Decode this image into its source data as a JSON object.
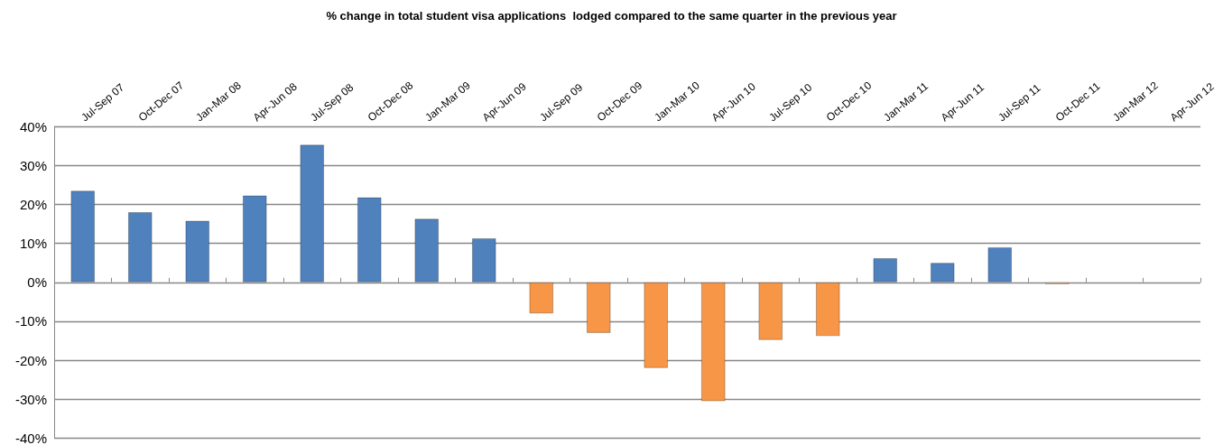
{
  "chart_data": {
    "type": "bar",
    "title": "% change in total student visa applications  lodged compared to the same quarter in the previous year",
    "categories": [
      "Jul-Sep 07",
      "Oct-Dec 07",
      "Jan-Mar 08",
      "Apr-Jun 08",
      "Jul-Sep 08",
      "Oct-Dec 08",
      "Jan-Mar 09",
      "Apr-Jun 09",
      "Jul-Sep 09",
      "Oct-Dec 09",
      "Jan-Mar 10",
      "Apr-Jun 10",
      "Jul-Sep 10",
      "Oct-Dec 10",
      "Jan-Mar 11",
      "Apr-Jun 11",
      "Jul-Sep 11",
      "Oct-Dec 11",
      "Jan-Mar 12",
      "Apr-Jun 12"
    ],
    "values": [
      23.5,
      18,
      15.8,
      22.3,
      35.3,
      21.8,
      16.3,
      11.3,
      -8,
      -13,
      -22,
      -30.5,
      -14.8,
      -13.8,
      6.2,
      5,
      9,
      -0.5,
      null,
      null
    ],
    "colors": [
      "#4f81bd",
      "#4f81bd",
      "#4f81bd",
      "#4f81bd",
      "#4f81bd",
      "#4f81bd",
      "#4f81bd",
      "#4f81bd",
      "#f79646",
      "#f79646",
      "#f79646",
      "#f79646",
      "#f79646",
      "#f79646",
      "#4f81bd",
      "#4f81bd",
      "#4f81bd",
      "#fac090",
      "#4f81bd",
      "#4f81bd"
    ],
    "ylim": [
      -40,
      40
    ],
    "yticks": [
      {
        "value": -40,
        "label": "-40%"
      },
      {
        "value": -30,
        "label": "-30%"
      },
      {
        "value": -20,
        "label": "-20%"
      },
      {
        "value": -10,
        "label": "-10%"
      },
      {
        "value": 0,
        "label": "0%"
      },
      {
        "value": 10,
        "label": "10%"
      },
      {
        "value": 20,
        "label": "20%"
      },
      {
        "value": 30,
        "label": "30%"
      },
      {
        "value": 40,
        "label": "40%"
      }
    ],
    "grid": "y"
  }
}
